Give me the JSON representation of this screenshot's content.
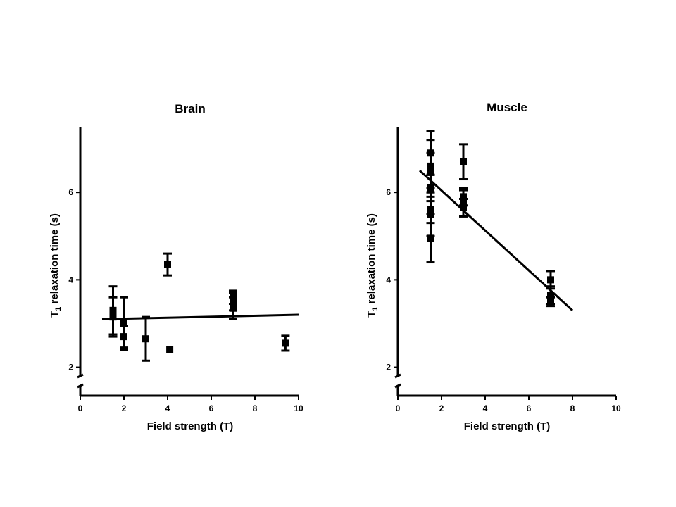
{
  "chart_data": [
    {
      "type": "scatter",
      "title": "Brain",
      "xlabel": "Field strength (T)",
      "ylabel_main": "T",
      "ylabel_sub": "1",
      "ylabel_rest": " relaxation time (s)",
      "xlim": [
        0,
        10
      ],
      "ylim": [
        1.8,
        7.5
      ],
      "xticks": [
        0,
        2,
        4,
        6,
        8,
        10
      ],
      "yticks": [
        2,
        4,
        6
      ],
      "grid": false,
      "y_axis_break": true,
      "points": [
        {
          "x": 1.5,
          "y": 3.3,
          "err": 0.55
        },
        {
          "x": 1.5,
          "y": 3.15,
          "err": 0.45
        },
        {
          "x": 2.0,
          "y": 3.0,
          "err": 0.6
        },
        {
          "x": 2.0,
          "y": 2.7,
          "err": 0.25
        },
        {
          "x": 3.0,
          "y": 2.65,
          "err": 0.5
        },
        {
          "x": 4.0,
          "y": 4.35,
          "err": 0.25
        },
        {
          "x": 4.1,
          "y": 2.4,
          "err": 0
        },
        {
          "x": 7.0,
          "y": 3.6,
          "err": 0.15
        },
        {
          "x": 7.0,
          "y": 3.5,
          "err": 0.2
        },
        {
          "x": 7.0,
          "y": 3.35,
          "err": 0.25
        },
        {
          "x": 9.4,
          "y": 2.55,
          "err": 0.17
        }
      ],
      "fit": {
        "x": [
          1.0,
          10.0
        ],
        "y": [
          3.1,
          3.2
        ]
      }
    },
    {
      "type": "scatter",
      "title": "Muscle",
      "xlabel": "Field strength (T)",
      "ylabel_main": "T",
      "ylabel_sub": "1",
      "ylabel_rest": " relaxation time (s)",
      "xlim": [
        0,
        10
      ],
      "ylim": [
        1.8,
        7.5
      ],
      "xticks": [
        0,
        2,
        4,
        6,
        8,
        10
      ],
      "yticks": [
        2,
        4,
        6
      ],
      "grid": false,
      "y_axis_break": true,
      "points": [
        {
          "x": 1.5,
          "y": 6.9,
          "err": 0.5
        },
        {
          "x": 1.5,
          "y": 6.6,
          "err": 0.6
        },
        {
          "x": 1.5,
          "y": 6.5,
          "err": 0.4
        },
        {
          "x": 1.5,
          "y": 6.1,
          "err": 0.3
        },
        {
          "x": 1.5,
          "y": 5.6,
          "err": 0.3
        },
        {
          "x": 1.5,
          "y": 5.5,
          "err": 0.5
        },
        {
          "x": 1.5,
          "y": 4.95,
          "err": 0.55
        },
        {
          "x": 3.0,
          "y": 6.7,
          "err": 0.4
        },
        {
          "x": 3.0,
          "y": 5.9,
          "err": 0.2
        },
        {
          "x": 3.0,
          "y": 5.75,
          "err": 0.3
        },
        {
          "x": 3.0,
          "y": 5.65,
          "err": 0.2
        },
        {
          "x": 7.0,
          "y": 4.0,
          "err": 0.2
        },
        {
          "x": 7.0,
          "y": 3.65,
          "err": 0.2
        },
        {
          "x": 7.0,
          "y": 3.5,
          "err": 0.1
        }
      ],
      "fit": {
        "x": [
          1.0,
          8.0
        ],
        "y": [
          6.5,
          3.3
        ]
      }
    }
  ]
}
